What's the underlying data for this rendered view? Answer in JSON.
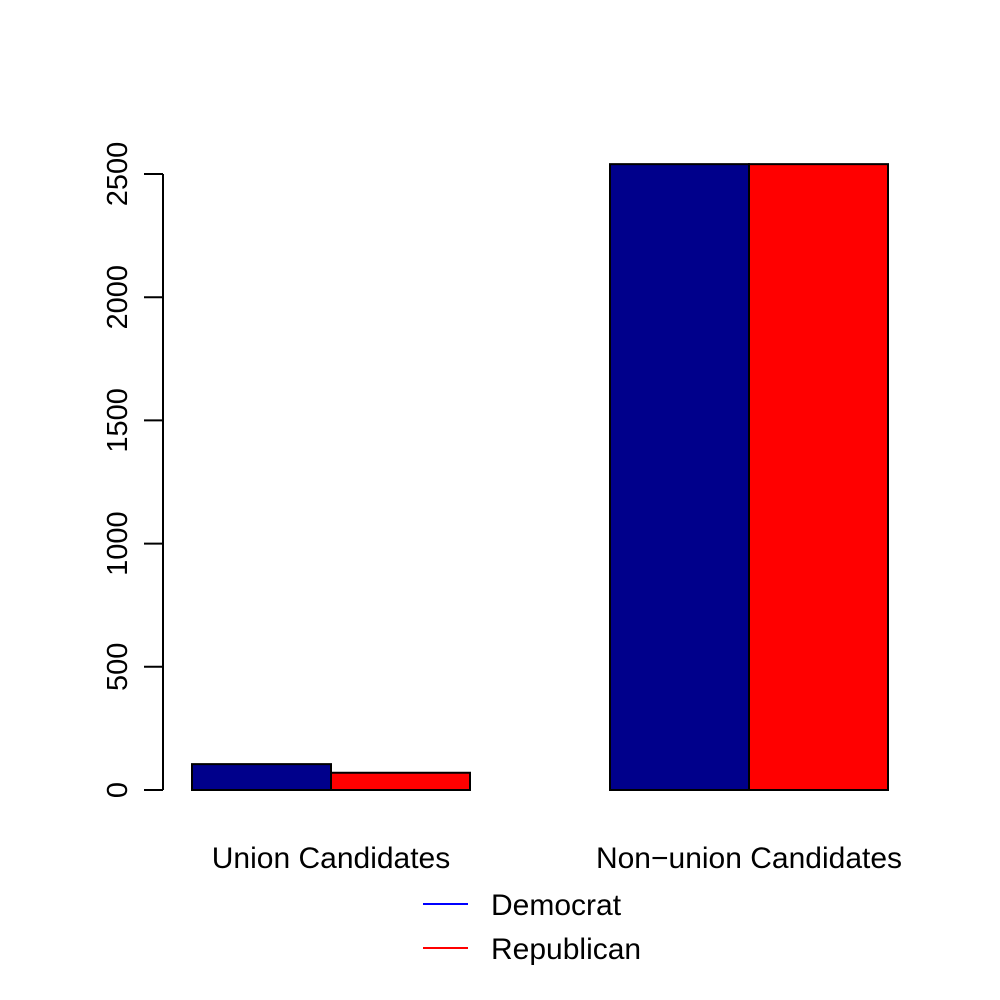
{
  "chart_data": {
    "type": "bar",
    "categories": [
      "Union Candidates",
      "Non−union Candidates"
    ],
    "series": [
      {
        "name": "Democrat",
        "values": [
          105,
          2540
        ],
        "color": "#00008B",
        "legend_color": "#0000FF"
      },
      {
        "name": "Republican",
        "values": [
          70,
          2540
        ],
        "color": "#FF0000",
        "legend_color": "#FF0000"
      }
    ],
    "yticks": [
      0,
      500,
      1000,
      1500,
      2000,
      2500
    ],
    "ylim": [
      0,
      2540
    ],
    "title": "",
    "xlabel": "",
    "ylabel": "",
    "grid": false,
    "legend_position": "bottom-center"
  }
}
